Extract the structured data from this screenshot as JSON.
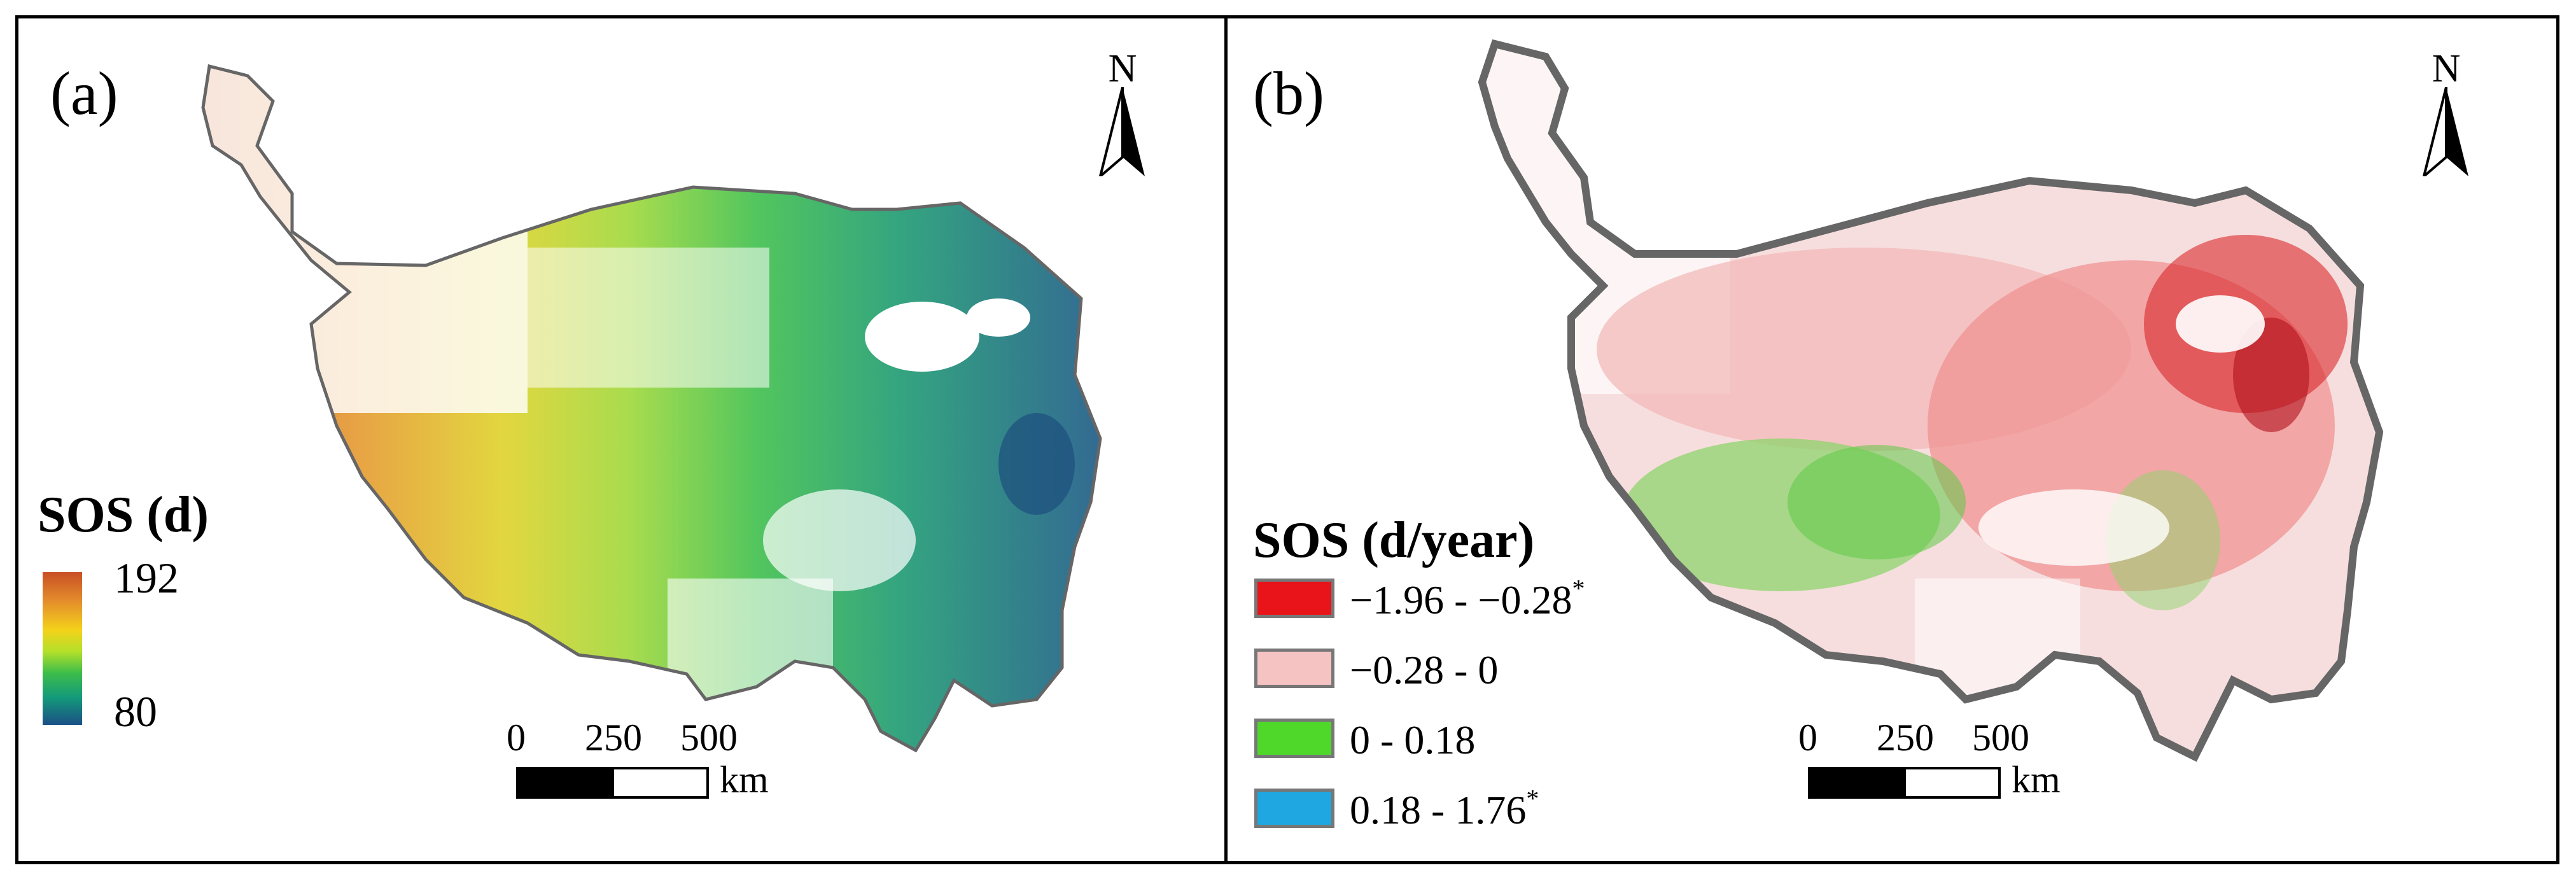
{
  "panels": {
    "a": {
      "label": "(a)",
      "north": "N",
      "legend_title": "SOS (d)",
      "ramp_max": "192",
      "ramp_min": "80",
      "scale": {
        "ticks": [
          "0",
          "250",
          "500"
        ],
        "unit": "km"
      }
    },
    "b": {
      "label": "(b)",
      "north": "N",
      "legend_title": "SOS (d/year)",
      "classes": [
        {
          "label": "−1.96 - −0.28",
          "mark": "*",
          "color": "#e8141a"
        },
        {
          "label": "−0.28 - 0",
          "mark": "",
          "color": "#f6c3c3"
        },
        {
          "label": "0 - 0.18",
          "mark": "",
          "color": "#4fd82a"
        },
        {
          "label": "0.18 - 1.76",
          "mark": "*",
          "color": "#1ea7e0"
        }
      ],
      "scale": {
        "ticks": [
          "0",
          "250",
          "500"
        ],
        "unit": "km"
      }
    }
  },
  "colors": {
    "outline": "#666666",
    "ramp": [
      "#c84f24",
      "#e38a2c",
      "#f4d21a",
      "#b3e02a",
      "#3dbd4a",
      "#139a7a",
      "#1b4f86"
    ]
  }
}
